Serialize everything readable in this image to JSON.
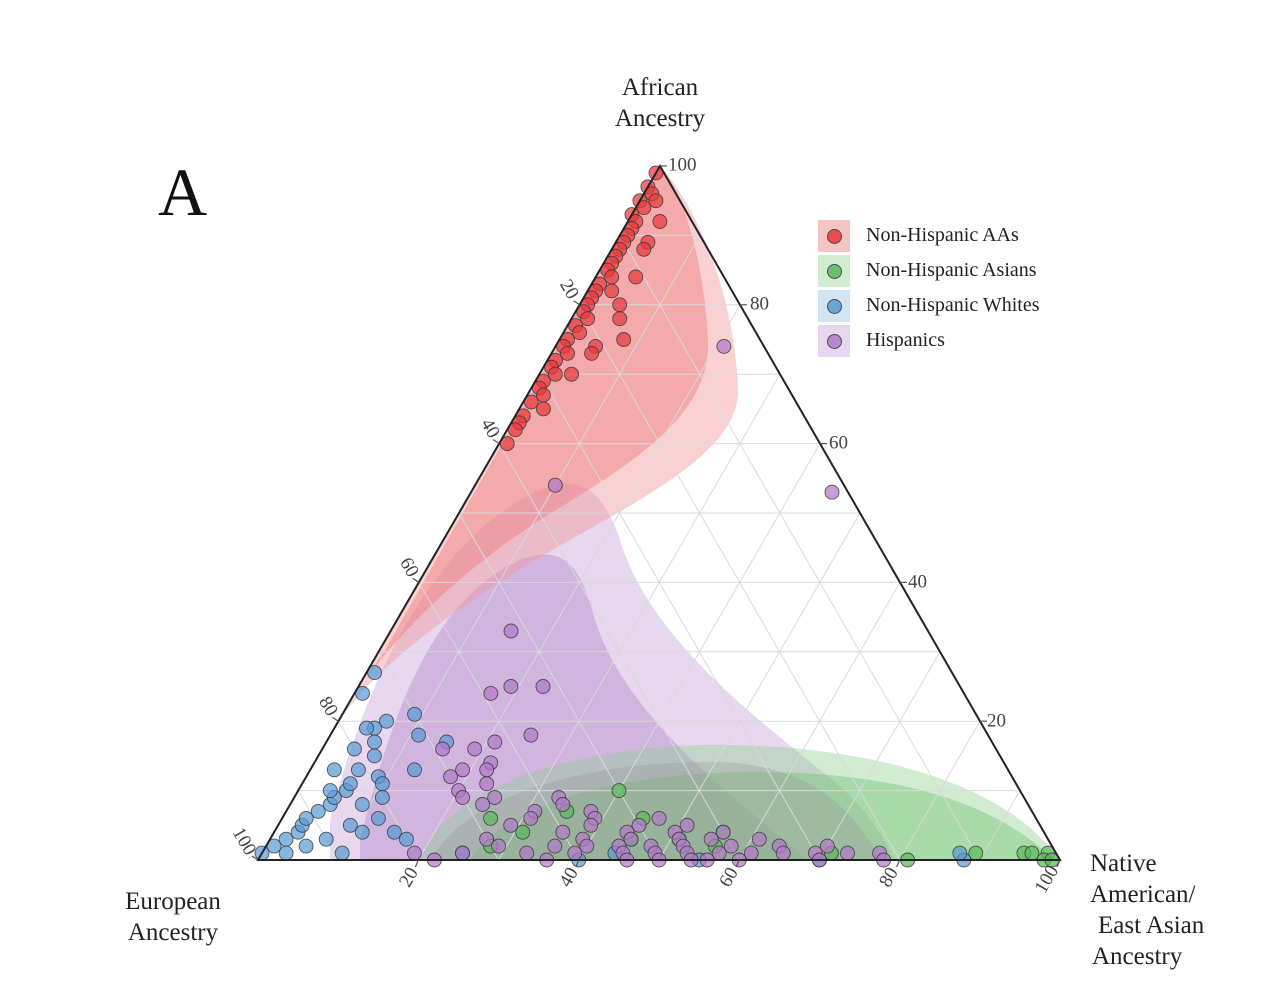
{
  "panel_label": "A",
  "chart_data": {
    "type": "scatter",
    "subtype": "ternary",
    "axes": {
      "top": {
        "label_lines": [
          "African",
          "Ancestry"
        ],
        "ticks": [
          "20",
          "40",
          "60",
          "80",
          "100"
        ]
      },
      "left": {
        "label_lines": [
          "European",
          "Ancestry"
        ],
        "ticks": [
          "20",
          "40",
          "60",
          "80",
          "100"
        ]
      },
      "right": {
        "label_lines": [
          "Native",
          "American/",
          "East Asian",
          "Ancestry"
        ],
        "ticks": [
          "20",
          "40",
          "60",
          "80",
          "100"
        ]
      }
    },
    "grid": true,
    "legend_position": "top-right",
    "series": [
      {
        "name": "Non-Hispanic AAs",
        "color": "#e8393c",
        "points": [
          [
            99,
            1,
            0
          ],
          [
            97,
            3,
            0
          ],
          [
            96,
            3,
            1
          ],
          [
            95,
            5,
            0
          ],
          [
            95,
            3,
            2
          ],
          [
            94,
            5,
            1
          ],
          [
            93,
            7,
            0
          ],
          [
            92,
            7,
            1
          ],
          [
            92,
            4,
            4
          ],
          [
            91,
            8,
            1
          ],
          [
            90,
            9,
            1
          ],
          [
            89,
            10,
            1
          ],
          [
            89,
            7,
            4
          ],
          [
            88,
            11,
            1
          ],
          [
            88,
            8,
            4
          ],
          [
            87,
            12,
            1
          ],
          [
            86,
            13,
            1
          ],
          [
            85,
            14,
            1
          ],
          [
            84,
            14,
            2
          ],
          [
            84,
            11,
            5
          ],
          [
            83,
            16,
            1
          ],
          [
            82,
            17,
            1
          ],
          [
            82,
            15,
            3
          ],
          [
            81,
            18,
            1
          ],
          [
            80,
            19,
            1
          ],
          [
            80,
            15,
            5
          ],
          [
            79,
            20,
            1
          ],
          [
            78,
            20,
            2
          ],
          [
            78,
            16,
            6
          ],
          [
            77,
            22,
            1
          ],
          [
            76,
            22,
            2
          ],
          [
            75,
            24,
            1
          ],
          [
            74,
            25,
            1
          ],
          [
            74,
            21,
            5
          ],
          [
            73,
            25,
            2
          ],
          [
            72,
            27,
            1
          ],
          [
            71,
            28,
            1
          ],
          [
            70,
            28,
            2
          ],
          [
            70,
            26,
            4
          ],
          [
            69,
            30,
            1
          ],
          [
            68,
            31,
            1
          ],
          [
            67,
            31,
            2
          ],
          [
            66,
            33,
            1
          ],
          [
            65,
            32,
            3
          ],
          [
            64,
            35,
            1
          ],
          [
            63,
            36,
            1
          ],
          [
            62,
            37,
            1
          ],
          [
            60,
            39,
            1
          ],
          [
            75,
            17,
            8
          ],
          [
            73,
            22,
            5
          ]
        ]
      },
      {
        "name": "Non-Hispanic Asians",
        "color": "#5cb85c",
        "points": [
          [
            1,
            4,
            95
          ],
          [
            1,
            3,
            96
          ],
          [
            1,
            1,
            98
          ],
          [
            0,
            2,
            98
          ],
          [
            0,
            1,
            99
          ],
          [
            1,
            28,
            71
          ],
          [
            0,
            19,
            81
          ],
          [
            1,
            10,
            89
          ],
          [
            2,
            42,
            56
          ],
          [
            3,
            46,
            51
          ],
          [
            4,
            40,
            56
          ],
          [
            3,
            52,
            45
          ],
          [
            6,
            49,
            45
          ],
          [
            7,
            58,
            35
          ],
          [
            10,
            50,
            40
          ],
          [
            6,
            68,
            26
          ],
          [
            4,
            65,
            31
          ],
          [
            2,
            70,
            28
          ]
        ]
      },
      {
        "name": "Non-Hispanic Whites",
        "color": "#5a9bd4",
        "points": [
          [
            1,
            99,
            0
          ],
          [
            2,
            97,
            1
          ],
          [
            1,
            96,
            3
          ],
          [
            3,
            95,
            2
          ],
          [
            4,
            93,
            3
          ],
          [
            2,
            93,
            5
          ],
          [
            5,
            92,
            3
          ],
          [
            6,
            91,
            3
          ],
          [
            3,
            90,
            7
          ],
          [
            7,
            89,
            4
          ],
          [
            8,
            87,
            5
          ],
          [
            5,
            86,
            9
          ],
          [
            9,
            86,
            5
          ],
          [
            10,
            84,
            6
          ],
          [
            4,
            85,
            11
          ],
          [
            11,
            83,
            6
          ],
          [
            13,
            81,
            6
          ],
          [
            12,
            79,
            9
          ],
          [
            15,
            78,
            7
          ],
          [
            17,
            77,
            6
          ],
          [
            19,
            76,
            5
          ],
          [
            20,
            74,
            6
          ],
          [
            13,
            74,
            13
          ],
          [
            18,
            71,
            11
          ],
          [
            21,
            70,
            9
          ],
          [
            17,
            68,
            15
          ],
          [
            11,
            79,
            10
          ],
          [
            24,
            75,
            1
          ],
          [
            27,
            72,
            1
          ],
          [
            19,
            77,
            4
          ],
          [
            16,
            80,
            4
          ],
          [
            13,
            84,
            3
          ],
          [
            10,
            86,
            4
          ],
          [
            8,
            83,
            9
          ],
          [
            6,
            82,
            12
          ],
          [
            9,
            80,
            11
          ],
          [
            4,
            81,
            15
          ],
          [
            1,
            89,
            10
          ],
          [
            3,
            80,
            17
          ],
          [
            1,
            74,
            25
          ],
          [
            0,
            60,
            40
          ],
          [
            1,
            55,
            44
          ],
          [
            0,
            30,
            70
          ],
          [
            0,
            45,
            55
          ],
          [
            0,
            12,
            88
          ],
          [
            1,
            12,
            87
          ]
        ]
      },
      {
        "name": "Hispanics",
        "color": "#b07ac8",
        "points": [
          [
            74,
            5,
            21
          ],
          [
            53,
            2,
            45
          ],
          [
            54,
            36,
            10
          ],
          [
            33,
            52,
            15
          ],
          [
            25,
            56,
            19
          ],
          [
            24,
            59,
            17
          ],
          [
            25,
            52,
            23
          ],
          [
            18,
            57,
            25
          ],
          [
            17,
            62,
            21
          ],
          [
            16,
            69,
            15
          ],
          [
            16,
            65,
            19
          ],
          [
            14,
            64,
            22
          ],
          [
            13,
            68,
            19
          ],
          [
            13,
            65,
            22
          ],
          [
            12,
            70,
            18
          ],
          [
            11,
            66,
            23
          ],
          [
            10,
            70,
            20
          ],
          [
            9,
            70,
            21
          ],
          [
            9,
            66,
            25
          ],
          [
            9,
            58,
            33
          ],
          [
            8,
            68,
            24
          ],
          [
            8,
            58,
            34
          ],
          [
            7,
            62,
            31
          ],
          [
            7,
            55,
            38
          ],
          [
            6,
            63,
            31
          ],
          [
            6,
            55,
            39
          ],
          [
            6,
            47,
            47
          ],
          [
            5,
            66,
            29
          ],
          [
            5,
            56,
            39
          ],
          [
            5,
            50,
            45
          ],
          [
            5,
            44,
            51
          ],
          [
            4,
            60,
            36
          ],
          [
            4,
            52,
            44
          ],
          [
            4,
            46,
            50
          ],
          [
            4,
            40,
            56
          ],
          [
            3,
            70,
            27
          ],
          [
            3,
            58,
            39
          ],
          [
            3,
            52,
            45
          ],
          [
            3,
            46,
            51
          ],
          [
            3,
            42,
            55
          ],
          [
            3,
            36,
            61
          ],
          [
            2,
            69,
            29
          ],
          [
            2,
            62,
            36
          ],
          [
            2,
            58,
            40
          ],
          [
            2,
            54,
            44
          ],
          [
            2,
            50,
            48
          ],
          [
            2,
            46,
            52
          ],
          [
            2,
            40,
            58
          ],
          [
            2,
            34,
            64
          ],
          [
            2,
            28,
            70
          ],
          [
            1,
            80,
            19
          ],
          [
            1,
            74,
            25
          ],
          [
            1,
            66,
            33
          ],
          [
            1,
            60,
            39
          ],
          [
            1,
            54,
            45
          ],
          [
            1,
            50,
            49
          ],
          [
            1,
            46,
            53
          ],
          [
            1,
            42,
            57
          ],
          [
            1,
            38,
            61
          ],
          [
            1,
            34,
            65
          ],
          [
            1,
            30,
            69
          ],
          [
            1,
            26,
            73
          ],
          [
            1,
            22,
            77
          ],
          [
            0,
            78,
            22
          ],
          [
            0,
            64,
            36
          ],
          [
            0,
            54,
            46
          ],
          [
            0,
            46,
            54
          ],
          [
            0,
            40,
            60
          ],
          [
            0,
            30,
            70
          ],
          [
            0,
            22,
            78
          ],
          [
            0,
            50,
            50
          ],
          [
            0,
            44,
            56
          ]
        ]
      }
    ]
  }
}
